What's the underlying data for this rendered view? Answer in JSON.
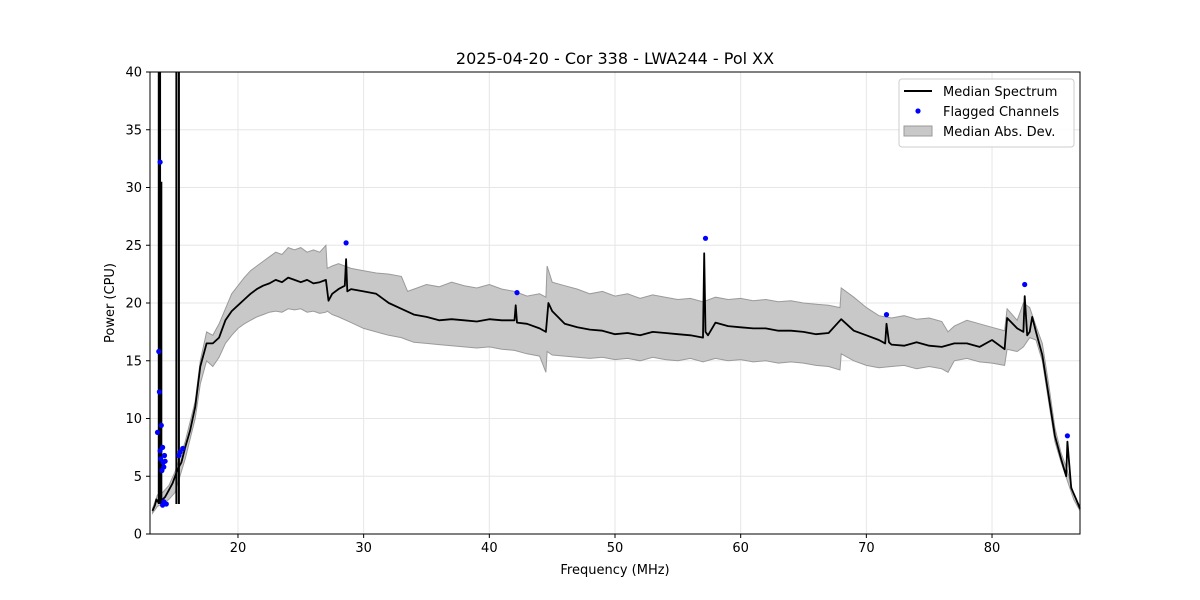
{
  "chart_data": {
    "type": "line",
    "title": "2025-04-20 - Cor 338 - LWA244 - Pol XX",
    "xlabel": "Frequency (MHz)",
    "ylabel": "Power (CPU)",
    "xlim": [
      13,
      87
    ],
    "ylim": [
      0,
      40
    ],
    "xticks": [
      20,
      30,
      40,
      50,
      60,
      70,
      80
    ],
    "yticks": [
      0,
      5,
      10,
      15,
      20,
      25,
      30,
      35,
      40
    ],
    "grid": true,
    "legend": {
      "position": "top-right",
      "entries": [
        "Median Spectrum",
        "Flagged Channels",
        "Median Abs. Dev."
      ]
    },
    "colors": {
      "line": "#000000",
      "flag": "#0000ff",
      "band": "#c8c8c8",
      "band_edge": "#9a9a9a"
    },
    "series": [
      {
        "name": "Median Spectrum",
        "x": [
          13.2,
          13.4,
          13.5,
          13.6,
          13.7,
          13.8,
          13.9,
          14.0,
          14.2,
          14.5,
          14.8,
          15.0,
          15.1,
          15.3,
          15.5,
          15.8,
          16.2,
          16.6,
          17.0,
          17.5,
          18.0,
          18.5,
          19.0,
          19.5,
          20.0,
          20.5,
          21.0,
          21.5,
          22.0,
          22.5,
          23.0,
          23.5,
          24.0,
          24.5,
          25.0,
          25.5,
          26.0,
          26.5,
          27.0,
          27.2,
          27.5,
          28.0,
          28.5,
          28.6,
          28.7,
          29.0,
          30.0,
          31.0,
          32.0,
          33.0,
          34.0,
          35.0,
          36.0,
          37.0,
          38.0,
          39.0,
          40.0,
          41.0,
          42.0,
          42.1,
          42.2,
          43.0,
          44.0,
          44.5,
          44.7,
          45.0,
          46.0,
          47.0,
          48.0,
          49.0,
          50.0,
          51.0,
          52.0,
          53.0,
          54.0,
          55.0,
          56.0,
          57.0,
          57.1,
          57.2,
          57.4,
          58.0,
          59.0,
          60.0,
          61.0,
          62.0,
          63.0,
          64.0,
          65.0,
          66.0,
          67.0,
          68.0,
          69.0,
          70.0,
          71.0,
          71.5,
          71.6,
          71.8,
          72.0,
          73.0,
          74.0,
          75.0,
          76.0,
          77.0,
          78.0,
          79.0,
          80.0,
          81.0,
          81.2,
          82.0,
          82.5,
          82.6,
          82.8,
          83.0,
          83.2,
          83.5,
          84.0,
          84.5,
          85.0,
          85.5,
          85.9,
          86.0,
          86.3,
          86.7,
          87.0
        ],
        "y": [
          2.0,
          2.5,
          3.0,
          2.8,
          3.0,
          2.7,
          2.9,
          3.0,
          3.2,
          3.8,
          4.4,
          5.0,
          5.3,
          5.8,
          6.2,
          7.5,
          9.0,
          11.0,
          14.5,
          16.5,
          16.5,
          17.0,
          18.5,
          19.3,
          19.8,
          20.3,
          20.8,
          21.2,
          21.5,
          21.7,
          22.0,
          21.8,
          22.2,
          22.0,
          21.8,
          22.0,
          21.7,
          21.8,
          22.0,
          20.2,
          20.8,
          21.2,
          21.5,
          23.8,
          21.0,
          21.2,
          21.0,
          20.8,
          20.0,
          19.5,
          19.0,
          18.8,
          18.5,
          18.6,
          18.5,
          18.4,
          18.6,
          18.5,
          18.5,
          19.8,
          18.3,
          18.2,
          17.8,
          17.5,
          20.0,
          19.3,
          18.2,
          17.9,
          17.7,
          17.6,
          17.3,
          17.4,
          17.2,
          17.5,
          17.4,
          17.3,
          17.2,
          17.0,
          24.3,
          17.5,
          17.2,
          18.3,
          18.0,
          17.9,
          17.8,
          17.8,
          17.6,
          17.6,
          17.5,
          17.3,
          17.4,
          18.6,
          17.6,
          17.2,
          16.8,
          16.5,
          18.2,
          16.6,
          16.4,
          16.3,
          16.6,
          16.3,
          16.2,
          16.5,
          16.5,
          16.2,
          16.8,
          16.0,
          18.7,
          17.8,
          17.5,
          20.6,
          17.2,
          17.5,
          18.8,
          17.5,
          15.5,
          12.0,
          8.5,
          6.5,
          5.0,
          8.0,
          4.0,
          3.0,
          2.2
        ]
      },
      {
        "name": "Median Abs. Dev.",
        "x": [
          13.2,
          13.6,
          14.0,
          14.5,
          15.0,
          15.8,
          16.6,
          17.0,
          17.5,
          18.0,
          18.5,
          19.0,
          19.5,
          20.0,
          20.5,
          21.0,
          21.5,
          22.0,
          22.5,
          23.0,
          23.5,
          24.0,
          24.5,
          25.0,
          25.5,
          26.0,
          26.5,
          27.0,
          27.1,
          27.5,
          28.0,
          29.0,
          30.0,
          31.0,
          32.0,
          33.0,
          33.5,
          34.0,
          35.0,
          36.0,
          37.0,
          38.0,
          39.0,
          40.0,
          41.0,
          42.0,
          43.0,
          44.0,
          44.5,
          44.6,
          45.0,
          46.0,
          47.0,
          48.0,
          49.0,
          50.0,
          51.0,
          52.0,
          53.0,
          54.0,
          55.0,
          56.0,
          57.0,
          58.0,
          59.0,
          60.0,
          61.0,
          62.0,
          63.0,
          64.0,
          65.0,
          66.0,
          67.0,
          67.9,
          68.0,
          69.0,
          70.0,
          71.0,
          72.0,
          73.0,
          74.0,
          75.0,
          76.0,
          76.5,
          77.0,
          78.0,
          79.0,
          80.0,
          81.0,
          81.2,
          82.0,
          82.5,
          83.0,
          83.5,
          84.0,
          84.5,
          85.0,
          85.5,
          86.0,
          86.5,
          87.0
        ],
        "upper": [
          2.2,
          3.4,
          3.6,
          4.2,
          5.4,
          8.0,
          11.5,
          15.0,
          17.5,
          17.2,
          18.2,
          19.5,
          20.8,
          21.5,
          22.2,
          22.8,
          23.2,
          23.6,
          24.0,
          24.4,
          24.2,
          24.8,
          24.6,
          24.8,
          24.4,
          24.6,
          24.4,
          25.0,
          23.0,
          23.2,
          23.4,
          23.0,
          22.8,
          22.6,
          22.5,
          22.3,
          21.0,
          21.2,
          21.6,
          21.4,
          21.8,
          21.5,
          21.3,
          21.6,
          21.2,
          21.0,
          20.6,
          20.8,
          20.5,
          23.2,
          21.8,
          21.5,
          21.2,
          20.8,
          21.0,
          20.6,
          20.8,
          20.4,
          20.7,
          20.5,
          20.3,
          20.4,
          20.1,
          20.5,
          20.3,
          20.4,
          20.2,
          20.3,
          20.1,
          20.2,
          20.0,
          19.9,
          19.8,
          19.6,
          21.3,
          20.5,
          19.6,
          18.9,
          18.7,
          18.9,
          18.6,
          18.7,
          18.4,
          17.5,
          18.0,
          18.5,
          18.2,
          17.9,
          17.6,
          19.5,
          18.5,
          20.0,
          19.6,
          18.0,
          16.5,
          13.0,
          9.2,
          7.0,
          5.5,
          3.4,
          2.4
        ],
        "lower": [
          1.8,
          2.4,
          2.6,
          3.0,
          3.6,
          6.5,
          10.0,
          13.0,
          15.0,
          14.5,
          15.3,
          16.5,
          17.2,
          17.8,
          18.2,
          18.5,
          18.8,
          19.0,
          19.2,
          19.3,
          19.2,
          19.5,
          19.4,
          19.5,
          19.2,
          19.3,
          19.1,
          19.2,
          19.3,
          19.0,
          18.8,
          18.3,
          17.8,
          17.5,
          17.2,
          17.0,
          16.8,
          16.6,
          16.5,
          16.4,
          16.3,
          16.2,
          16.1,
          16.2,
          16.0,
          15.9,
          15.6,
          15.4,
          14.0,
          15.8,
          15.5,
          15.4,
          15.3,
          15.2,
          15.3,
          15.1,
          15.2,
          15.0,
          15.3,
          15.1,
          15.0,
          15.2,
          14.9,
          15.2,
          15.0,
          15.1,
          14.9,
          15.0,
          14.8,
          14.9,
          14.8,
          14.6,
          14.5,
          14.2,
          15.6,
          15.0,
          14.6,
          14.4,
          14.5,
          14.6,
          14.3,
          14.5,
          14.3,
          14.0,
          15.0,
          15.2,
          14.9,
          14.8,
          14.6,
          16.0,
          15.8,
          16.2,
          17.0,
          16.8,
          15.0,
          11.5,
          8.0,
          6.2,
          4.6,
          3.0,
          2.0
        ]
      },
      {
        "name": "Flagged Channels",
        "x": [
          13.6,
          13.7,
          13.75,
          13.8,
          13.8,
          13.85,
          13.9,
          13.95,
          14.0,
          14.0,
          14.05,
          14.1,
          14.1,
          14.15,
          14.2,
          14.3,
          15.3,
          15.4,
          15.6,
          28.6,
          42.2,
          57.2,
          71.6,
          82.6,
          86.0
        ],
        "y": [
          8.8,
          15.8,
          12.3,
          7.2,
          32.2,
          6.5,
          9.4,
          5.5,
          7.5,
          2.5,
          6.2,
          2.8,
          5.8,
          6.8,
          6.3,
          2.6,
          6.8,
          7.1,
          7.4,
          25.2,
          20.9,
          25.6,
          19.0,
          21.6,
          8.5
        ]
      }
    ],
    "spikes": [
      {
        "x": 13.7,
        "peak": 40.0
      },
      {
        "x": 13.8,
        "peak": 40.0
      },
      {
        "x": 13.9,
        "peak": 30.5
      },
      {
        "x": 15.1,
        "peak": 40.0
      },
      {
        "x": 15.3,
        "peak": 40.0
      }
    ]
  }
}
